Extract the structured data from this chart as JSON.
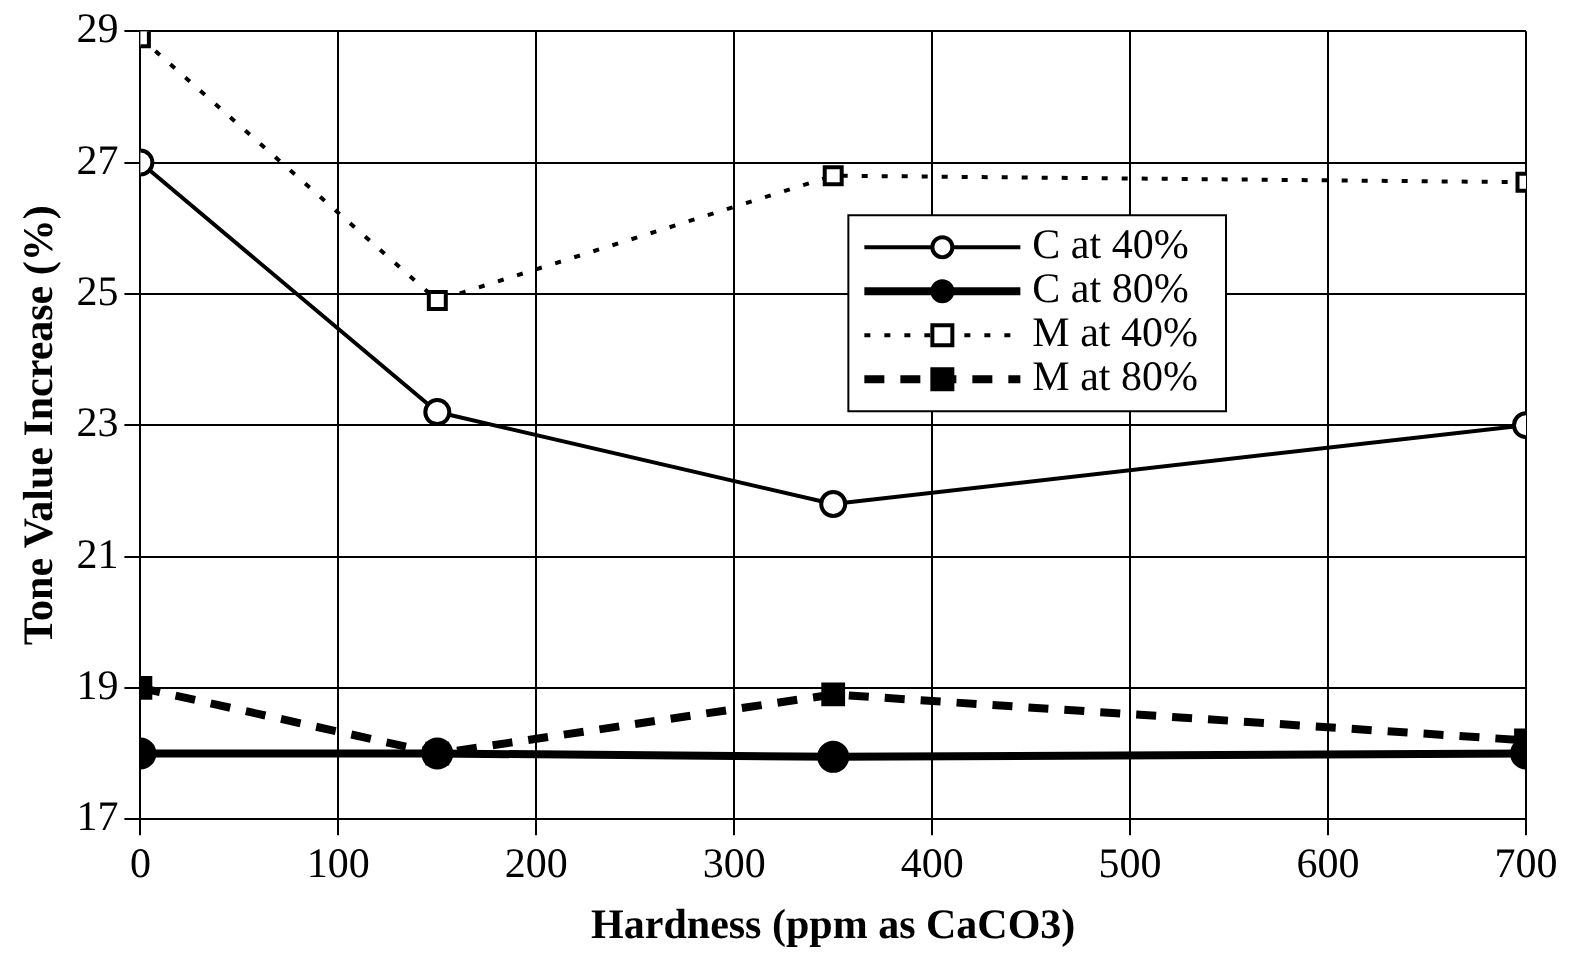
{
  "chart_data": {
    "type": "line",
    "xlabel": "Hardness (ppm as CaCO3)",
    "ylabel": "Tone Value Increase (%)",
    "x": [
      0,
      150,
      350,
      700
    ],
    "xlim": [
      0,
      700
    ],
    "xticks": [
      0,
      100,
      200,
      300,
      400,
      500,
      600,
      700
    ],
    "ylim": [
      17,
      29
    ],
    "yticks": [
      17,
      19,
      21,
      23,
      25,
      27,
      29
    ],
    "grid": true,
    "legend": "top right",
    "series": [
      {
        "name": "C at 40%",
        "color": "#000000",
        "marker": "circle",
        "line_style": "solid",
        "values": [
          27.0,
          23.2,
          21.8,
          23.0
        ]
      },
      {
        "name": "C at 80%",
        "color": "#000000",
        "marker": "circle",
        "line_style": "solid",
        "values": [
          18.0,
          18.0,
          17.95,
          18.0
        ]
      },
      {
        "name": "M at 40%",
        "color": "#000000",
        "marker": "square",
        "line_style": "dotted",
        "values": [
          28.9,
          24.9,
          26.8,
          26.7
        ]
      },
      {
        "name": "M at 80%",
        "color": "#000000",
        "marker": "square",
        "line_style": "dashed",
        "values": [
          19.0,
          18.0,
          18.9,
          18.2
        ]
      }
    ]
  }
}
